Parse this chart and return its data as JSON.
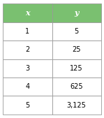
{
  "headers": [
    "x",
    "y"
  ],
  "rows": [
    [
      "1",
      "5"
    ],
    [
      "2",
      "25"
    ],
    [
      "3",
      "125"
    ],
    [
      "4",
      "625"
    ],
    [
      "5",
      "3,125"
    ]
  ],
  "header_bg": "#7ac070",
  "header_text_color": "#ffffff",
  "cell_bg": "#ffffff",
  "cell_text_color": "#000000",
  "border_color": "#999999",
  "header_fontsize": 8,
  "cell_fontsize": 7,
  "fig_bg": "#ffffff",
  "fig_width": 1.49,
  "fig_height": 1.69,
  "dpi": 100
}
